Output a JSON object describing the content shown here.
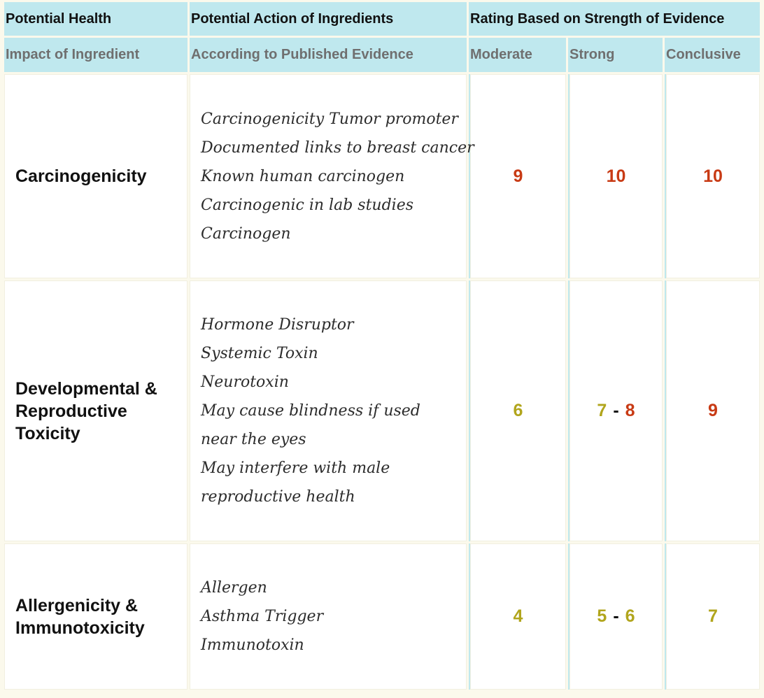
{
  "colors": {
    "header_bg": "#bfe8ee",
    "page_bg": "#fbf9ec",
    "cell_bg": "#ffffff",
    "rating_red": "#c83a14",
    "rating_olive": "#b1a51c",
    "subheader_text": "#6f6f6f"
  },
  "header": {
    "row1": {
      "impact": "Potential Health",
      "action": "Potential Action of Ingredients",
      "rating": "Rating Based on Strength of Evidence"
    },
    "row2": {
      "impact": "Impact of Ingredient",
      "action": "According to Published Evidence",
      "moderate": "Moderate",
      "strong": "Strong",
      "conclusive": "Conclusive"
    }
  },
  "rows": [
    {
      "impact": "Carcinogenicity",
      "actions": [
        "Carcinogenicity Tumor promoter",
        "Documented links to breast cancer",
        "Known human carcinogen",
        "Carcinogenic in lab studies",
        "Carcinogen"
      ],
      "moderate": {
        "value": "9",
        "color": "#c83a14"
      },
      "strong": {
        "from": "10",
        "from_color": "#c83a14",
        "to": "",
        "to_color": "#c83a14"
      },
      "conclusive": {
        "value": "10",
        "color": "#c83a14"
      }
    },
    {
      "impact": "Developmental & Reproductive Toxicity",
      "actions": [
        "Hormone Disruptor",
        "Systemic Toxin",
        "Neurotoxin",
        "May cause blindness if used",
        "near the eyes",
        "May interfere with male",
        "reproductive health"
      ],
      "moderate": {
        "value": "6",
        "color": "#b1a51c"
      },
      "strong": {
        "from": "7",
        "from_color": "#b1a51c",
        "to": "8",
        "to_color": "#c83a14"
      },
      "conclusive": {
        "value": "9",
        "color": "#c83a14"
      }
    },
    {
      "impact": "Allergenicity & Immunotoxicity",
      "actions": [
        "Allergen",
        "Asthma Trigger",
        "Immunotoxin"
      ],
      "moderate": {
        "value": "4",
        "color": "#b1a51c"
      },
      "strong": {
        "from": "5",
        "from_color": "#b1a51c",
        "to": "6",
        "to_color": "#b1a51c"
      },
      "conclusive": {
        "value": "7",
        "color": "#b1a51c"
      }
    }
  ],
  "range_separator": "-"
}
